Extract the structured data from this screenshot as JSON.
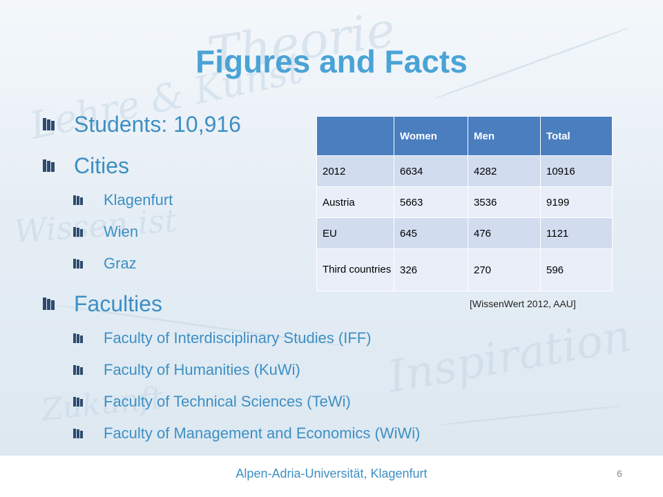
{
  "slide": {
    "title": "Figures and Facts",
    "bullets": [
      {
        "text": "Students: 10,916",
        "level": 1
      },
      {
        "text": "Cities",
        "level": 1
      },
      {
        "text": "Klagenfurt",
        "level": 2
      },
      {
        "text": "Wien",
        "level": 2
      },
      {
        "text": "Graz",
        "level": 2
      },
      {
        "text": "Faculties",
        "level": 1
      },
      {
        "text": "Faculty of Interdisciplinary Studies (IFF)",
        "level": 2
      },
      {
        "text": "Faculty of Humanities (KuWi)",
        "level": 2
      },
      {
        "text": "Faculty of Technical Sciences (TeWi)",
        "level": 2
      },
      {
        "text": "Faculty of Management and Economics (WiWi)",
        "level": 2
      }
    ],
    "table": {
      "headers": [
        "",
        "Women",
        "Men",
        "Total"
      ],
      "rows": [
        [
          "2012",
          "6634",
          "4282",
          "10916"
        ],
        [
          "Austria",
          "5663",
          "3536",
          "9199"
        ],
        [
          "EU",
          "645",
          "476",
          "1121"
        ],
        [
          "Third countries",
          "326",
          "270",
          "596"
        ]
      ]
    },
    "source_note": "[WissenWert 2012, AAU]",
    "footer": "Alpen-Adria-Universität, Klagenfurt",
    "page_number": "6",
    "bullet_icon": "book-bullet-icon",
    "colors": {
      "accent": "#4aa3d6",
      "text": "#3d8fc3",
      "table_header": "#4a7ebf",
      "bullet": "#2d4b6e"
    }
  }
}
